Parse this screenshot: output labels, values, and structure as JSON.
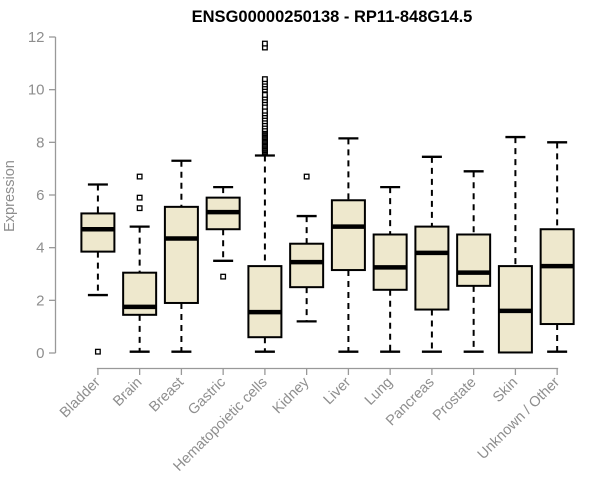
{
  "chart_data": {
    "type": "boxplot",
    "title": "ENSG00000250138 - RP11-848G14.5",
    "xlabel": "",
    "ylabel": "Expression",
    "ylim": [
      0,
      12
    ],
    "yticks": [
      0,
      2,
      4,
      6,
      8,
      10,
      12
    ],
    "grid": false,
    "legend": "none",
    "categories": [
      "Bladder",
      "Brain",
      "Breast",
      "Gastric",
      "Hematopoietic cells",
      "Kidney",
      "Liver",
      "Lung",
      "Pancreas",
      "Prostate",
      "Skin",
      "Unknown / Other"
    ],
    "series": [
      {
        "category": "Bladder",
        "whisker_low": 2.2,
        "q1": 3.85,
        "median": 4.7,
        "q3": 5.3,
        "whisker_high": 6.4,
        "outliers": [
          0.05
        ]
      },
      {
        "category": "Brain",
        "whisker_low": 0.05,
        "q1": 1.45,
        "median": 1.75,
        "q3": 3.05,
        "whisker_high": 4.8,
        "outliers": [
          5.5,
          5.9,
          6.7
        ]
      },
      {
        "category": "Breast",
        "whisker_low": 0.05,
        "q1": 1.9,
        "median": 4.35,
        "q3": 5.55,
        "whisker_high": 7.3,
        "outliers": []
      },
      {
        "category": "Gastric",
        "whisker_low": 3.5,
        "q1": 4.7,
        "median": 5.35,
        "q3": 5.9,
        "whisker_high": 6.3,
        "outliers": [
          2.9
        ]
      },
      {
        "category": "Hematopoietic cells",
        "whisker_low": 0.05,
        "q1": 0.6,
        "median": 1.55,
        "q3": 3.3,
        "whisker_high": 7.5,
        "outliers": [
          7.6,
          7.65,
          7.7,
          7.75,
          7.8,
          7.85,
          7.9,
          7.95,
          8.0,
          8.05,
          8.1,
          8.15,
          8.2,
          8.25,
          8.3,
          8.35,
          8.4,
          8.45,
          8.5,
          8.6,
          8.7,
          8.8,
          8.9,
          9.0,
          9.1,
          9.2,
          9.35,
          9.5,
          9.6,
          9.7,
          9.8,
          10.0,
          10.1,
          10.2,
          10.3,
          10.4,
          11.6,
          11.75
        ]
      },
      {
        "category": "Kidney",
        "whisker_low": 1.2,
        "q1": 2.5,
        "median": 3.45,
        "q3": 4.15,
        "whisker_high": 5.2,
        "outliers": [
          6.7
        ]
      },
      {
        "category": "Liver",
        "whisker_low": 0.05,
        "q1": 3.15,
        "median": 4.8,
        "q3": 5.8,
        "whisker_high": 8.15,
        "outliers": []
      },
      {
        "category": "Lung",
        "whisker_low": 0.05,
        "q1": 2.4,
        "median": 3.25,
        "q3": 4.5,
        "whisker_high": 6.3,
        "outliers": []
      },
      {
        "category": "Pancreas",
        "whisker_low": 0.05,
        "q1": 1.65,
        "median": 3.8,
        "q3": 4.8,
        "whisker_high": 7.45,
        "outliers": []
      },
      {
        "category": "Prostate",
        "whisker_low": 0.05,
        "q1": 2.55,
        "median": 3.05,
        "q3": 4.5,
        "whisker_high": 6.9,
        "outliers": []
      },
      {
        "category": "Skin",
        "whisker_low": 0.02,
        "q1": 0.02,
        "median": 1.6,
        "q3": 3.3,
        "whisker_high": 8.2,
        "outliers": []
      },
      {
        "category": "Unknown / Other",
        "whisker_low": 0.05,
        "q1": 1.1,
        "median": 3.3,
        "q3": 4.7,
        "whisker_high": 8.0,
        "outliers": []
      }
    ],
    "colors": {
      "box_fill": "#EEE8CD",
      "box_border": "#000000",
      "median": "#000000",
      "whisker": "#000000",
      "outlier_fill": "#FFFFFF",
      "axis_line": "#999999",
      "tick_label": "#8E8E8E",
      "title": "#000000",
      "background": "#FFFFFF"
    }
  }
}
